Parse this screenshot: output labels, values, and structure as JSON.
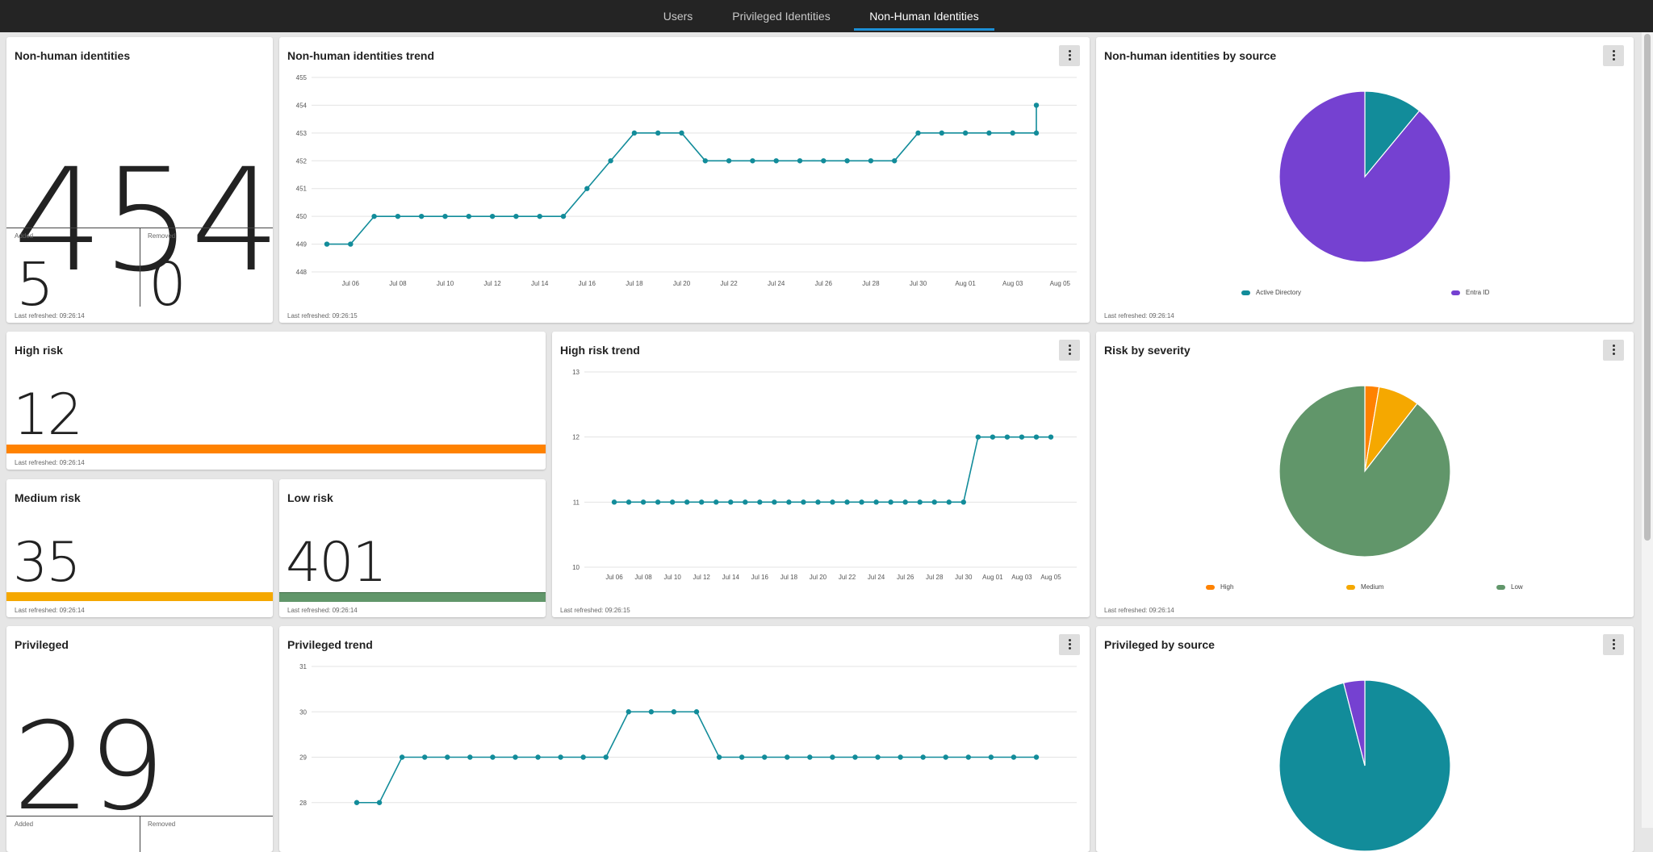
{
  "nav": {
    "tabs": [
      {
        "label": "Users",
        "active": false
      },
      {
        "label": "Privileged Identities",
        "active": false
      },
      {
        "label": "Non-Human Identities",
        "active": true
      }
    ]
  },
  "colors": {
    "teal": "#128c9a",
    "purple": "#7541d1",
    "orange": "#ff8200",
    "amber": "#f5a800",
    "green": "#61966a",
    "accent": "#1c8fd6"
  },
  "nhi_count": {
    "title": "Non-human identities",
    "value": "454",
    "added_label": "Added",
    "added_value": "5",
    "removed_label": "Removed",
    "removed_value": "0",
    "refreshed": "Last refreshed: 09:26:14"
  },
  "nhi_trend": {
    "title": "Non-human identities trend",
    "refreshed": "Last refreshed: 09:26:15",
    "menu_icon": "kebab-icon"
  },
  "nhi_source": {
    "title": "Non-human identities by source",
    "refreshed": "Last refreshed: 09:26:14",
    "legend": [
      "Active Directory",
      "Entra ID"
    ]
  },
  "high_risk": {
    "title": "High risk",
    "value": "12",
    "refreshed": "Last refreshed: 09:26:14"
  },
  "medium_risk": {
    "title": "Medium risk",
    "value": "35",
    "refreshed": "Last refreshed: 09:26:14"
  },
  "low_risk": {
    "title": "Low risk",
    "value": "401",
    "refreshed": "Last refreshed: 09:26:14"
  },
  "high_trend": {
    "title": "High risk trend",
    "refreshed": "Last refreshed: 09:26:15"
  },
  "risk_severity": {
    "title": "Risk by severity",
    "refreshed": "Last refreshed: 09:26:14",
    "legend": [
      "High",
      "Medium",
      "Low"
    ]
  },
  "privileged": {
    "title": "Privileged",
    "value": "29",
    "added_label": "Added",
    "removed_label": "Removed"
  },
  "priv_trend": {
    "title": "Privileged trend"
  },
  "priv_source": {
    "title": "Privileged by source"
  },
  "chart_data": [
    {
      "id": "nhi_trend",
      "type": "line",
      "x": [
        "Jul 05",
        "Jul 06",
        "Jul 07",
        "Jul 08",
        "Jul 09",
        "Jul 10",
        "Jul 11",
        "Jul 12",
        "Jul 13",
        "Jul 14",
        "Jul 15",
        "Jul 16",
        "Jul 17",
        "Jul 18",
        "Jul 19",
        "Jul 20",
        "Jul 21",
        "Jul 22",
        "Jul 23",
        "Jul 24",
        "Jul 25",
        "Jul 26",
        "Jul 27",
        "Jul 28",
        "Jul 29",
        "Jul 30",
        "Jul 31",
        "Aug 01",
        "Aug 02",
        "Aug 03",
        "Aug 04",
        "Aug 05"
      ],
      "values": [
        449,
        449,
        450,
        450,
        450,
        450,
        450,
        450,
        450,
        450,
        450,
        451,
        452,
        453,
        453,
        453,
        452,
        452,
        452,
        452,
        452,
        452,
        452,
        452,
        452,
        453,
        453,
        453,
        453,
        453,
        453,
        454
      ],
      "x_ticks": [
        "Jul 06",
        "Jul 08",
        "Jul 10",
        "Jul 12",
        "Jul 14",
        "Jul 16",
        "Jul 18",
        "Jul 20",
        "Jul 22",
        "Jul 24",
        "Jul 26",
        "Jul 28",
        "Jul 30",
        "Aug 01",
        "Aug 03",
        "Aug 05"
      ],
      "y_ticks": [
        448,
        449,
        450,
        451,
        452,
        453,
        454,
        455
      ],
      "ylim": [
        448,
        455
      ],
      "grid": true
    },
    {
      "id": "nhi_source",
      "type": "pie",
      "labels": [
        "Active Directory",
        "Entra ID"
      ],
      "values": [
        11,
        89
      ]
    },
    {
      "id": "high_trend",
      "type": "line",
      "x": [
        "Jul 06",
        "Jul 07",
        "Jul 08",
        "Jul 09",
        "Jul 10",
        "Jul 11",
        "Jul 12",
        "Jul 13",
        "Jul 14",
        "Jul 15",
        "Jul 16",
        "Jul 17",
        "Jul 18",
        "Jul 19",
        "Jul 20",
        "Jul 21",
        "Jul 22",
        "Jul 23",
        "Jul 24",
        "Jul 25",
        "Jul 26",
        "Jul 27",
        "Jul 28",
        "Jul 29",
        "Jul 30",
        "Jul 31",
        "Aug 01",
        "Aug 02",
        "Aug 03",
        "Aug 04",
        "Aug 05"
      ],
      "values": [
        11,
        11,
        11,
        11,
        11,
        11,
        11,
        11,
        11,
        11,
        11,
        11,
        11,
        11,
        11,
        11,
        11,
        11,
        11,
        11,
        11,
        11,
        11,
        11,
        11,
        12,
        12,
        12,
        12,
        12,
        12
      ],
      "x_ticks": [
        "Jul 06",
        "Jul 08",
        "Jul 10",
        "Jul 12",
        "Jul 14",
        "Jul 16",
        "Jul 18",
        "Jul 20",
        "Jul 22",
        "Jul 24",
        "Jul 26",
        "Jul 28",
        "Jul 30",
        "Aug 01",
        "Aug 03",
        "Aug 05"
      ],
      "y_ticks": [
        10,
        11,
        12,
        13
      ],
      "ylim": [
        10,
        13
      ],
      "grid": true
    },
    {
      "id": "risk_severity",
      "type": "pie",
      "labels": [
        "High",
        "Medium",
        "Low"
      ],
      "values": [
        12,
        35,
        401
      ]
    },
    {
      "id": "priv_trend",
      "type": "line",
      "x": [
        "Jul 05",
        "Jul 06",
        "Jul 07",
        "Jul 08",
        "Jul 09",
        "Jul 10",
        "Jul 11",
        "Jul 12",
        "Jul 13",
        "Jul 14",
        "Jul 15",
        "Jul 16",
        "Jul 17",
        "Jul 18",
        "Jul 19",
        "Jul 20",
        "Jul 21",
        "Jul 22",
        "Jul 23",
        "Jul 24",
        "Jul 25",
        "Jul 26",
        "Jul 27",
        "Jul 28",
        "Jul 29",
        "Jul 30",
        "Jul 31",
        "Aug 01",
        "Aug 02",
        "Aug 03",
        "Aug 04"
      ],
      "values": [
        28,
        28,
        29,
        29,
        29,
        29,
        29,
        29,
        29,
        29,
        29,
        29,
        30,
        30,
        30,
        30,
        29,
        29,
        29,
        29,
        29,
        29,
        29,
        29,
        29,
        29,
        29,
        29,
        29,
        29,
        29
      ],
      "y_ticks": [
        28,
        29,
        30,
        31
      ],
      "ylim": [
        27.8,
        31
      ],
      "grid": true
    },
    {
      "id": "priv_source",
      "type": "pie",
      "values": [
        96,
        4
      ]
    }
  ]
}
